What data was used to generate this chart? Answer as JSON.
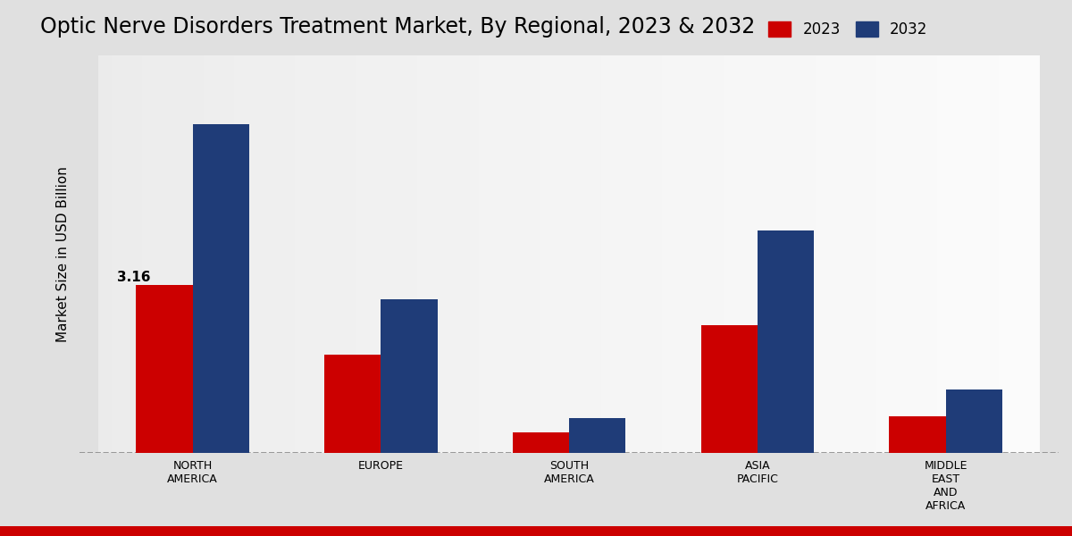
{
  "title": "Optic Nerve Disorders Treatment Market, By Regional, 2023 & 2032",
  "ylabel": "Market Size in USD Billion",
  "categories": [
    "NORTH\nAMERICA",
    "EUROPE",
    "SOUTH\nAMERICA",
    "ASIA\nPACIFIC",
    "MIDDLE\nEAST\nAND\nAFRICA"
  ],
  "values_2023": [
    3.16,
    1.85,
    0.38,
    2.4,
    0.68
  ],
  "values_2032": [
    6.2,
    2.9,
    0.65,
    4.2,
    1.2
  ],
  "color_2023": "#cc0000",
  "color_2032": "#1f3c78",
  "annotation_label": "3.16",
  "annotation_index": 0,
  "dashed_line_y": 0,
  "bar_width": 0.3,
  "legend_labels": [
    "2023",
    "2032"
  ],
  "bg_left": "#d8d8d8",
  "bg_right": "#f5f5f5",
  "ylim": [
    0,
    7.5
  ],
  "title_fontsize": 17,
  "axis_label_fontsize": 11,
  "tick_fontsize": 9,
  "legend_fontsize": 12,
  "annotation_fontsize": 11
}
